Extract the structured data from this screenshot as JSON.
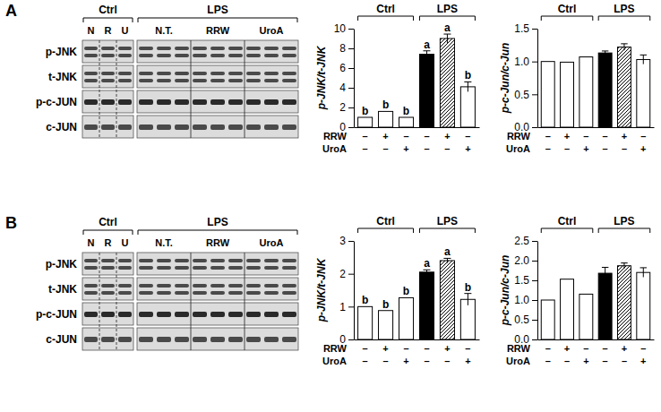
{
  "chart_data": [
    {
      "type": "bar",
      "ylabel": "p-JNK/t-JNK",
      "categories": [
        null,
        null,
        null,
        null,
        null,
        null
      ],
      "values": [
        1.0,
        1.6,
        1.0,
        7.4,
        9.0,
        4.1
      ],
      "errors": [
        null,
        null,
        null,
        0.35,
        0.45,
        0.5
      ],
      "colors": [
        "#ffffff",
        "#ffffff",
        "#ffffff",
        "#000000",
        "hatch",
        "#ffffff"
      ],
      "ylim": [
        0,
        10
      ],
      "yticks": [
        0,
        2,
        4,
        6,
        8,
        10
      ],
      "letters": [
        "b",
        "b",
        "b",
        "a",
        "a",
        "b"
      ],
      "groups": [
        {
          "label": "Ctrl",
          "from": 0,
          "to": 2
        },
        {
          "label": "LPS",
          "from": 3,
          "to": 5
        }
      ],
      "treatments": [
        {
          "name": "RRW",
          "signs": [
            "–",
            "+",
            "–",
            "–",
            "+",
            "–"
          ]
        },
        {
          "name": "UroA",
          "signs": [
            "–",
            "–",
            "+",
            "–",
            "–",
            "+"
          ]
        }
      ]
    },
    {
      "type": "bar",
      "ylabel": "p-c-Jun/c-Jun",
      "categories": [
        null,
        null,
        null,
        null,
        null,
        null
      ],
      "values": [
        1.0,
        0.99,
        1.07,
        1.13,
        1.22,
        1.03
      ],
      "errors": [
        null,
        null,
        null,
        0.03,
        0.05,
        0.07
      ],
      "colors": [
        "#ffffff",
        "#ffffff",
        "#ffffff",
        "#000000",
        "hatch",
        "#ffffff"
      ],
      "ylim": [
        0,
        1.5
      ],
      "yticks": [
        {
          "value": 0,
          "label": "0.0"
        },
        0.5,
        {
          "value": 1,
          "label": "1.0"
        },
        1.5
      ],
      "groups": [
        {
          "label": "Ctrl",
          "from": 0,
          "to": 2
        },
        {
          "label": "LPS",
          "from": 3,
          "to": 5
        }
      ],
      "treatments": [
        {
          "name": "RRW",
          "signs": [
            "–",
            "+",
            "–",
            "–",
            "+",
            "–"
          ]
        },
        {
          "name": "UroA",
          "signs": [
            "–",
            "–",
            "+",
            "–",
            "–",
            "+"
          ]
        }
      ]
    },
    {
      "type": "bar",
      "ylabel": "p-JNK/t-JNK",
      "categories": [
        null,
        null,
        null,
        null,
        null,
        null
      ],
      "values": [
        1.0,
        0.88,
        1.27,
        2.05,
        2.4,
        1.22
      ],
      "errors": [
        null,
        null,
        null,
        0.07,
        0.07,
        0.18
      ],
      "colors": [
        "#ffffff",
        "#ffffff",
        "#ffffff",
        "#000000",
        "hatch",
        "#ffffff"
      ],
      "ylim": [
        0,
        3
      ],
      "yticks": [
        0,
        1,
        2,
        3
      ],
      "letters": [
        "b",
        "b",
        "b",
        "a",
        "a",
        "b"
      ],
      "groups": [
        {
          "label": "Ctrl",
          "from": 0,
          "to": 2
        },
        {
          "label": "LPS",
          "from": 3,
          "to": 5
        }
      ],
      "treatments": [
        {
          "name": "RRW",
          "signs": [
            "–",
            "+",
            "–",
            "–",
            "+",
            "–"
          ]
        },
        {
          "name": "UroA",
          "signs": [
            "–",
            "–",
            "+",
            "–",
            "–",
            "+"
          ]
        }
      ]
    },
    {
      "type": "bar",
      "ylabel": "p-c-Jun/c-Jun",
      "categories": [
        null,
        null,
        null,
        null,
        null,
        null
      ],
      "values": [
        1.0,
        1.53,
        1.15,
        1.68,
        1.87,
        1.7
      ],
      "errors": [
        null,
        null,
        null,
        0.15,
        0.07,
        0.12
      ],
      "colors": [
        "#ffffff",
        "#ffffff",
        "#ffffff",
        "#000000",
        "hatch",
        "#ffffff"
      ],
      "ylim": [
        0,
        2.5
      ],
      "yticks": [
        {
          "value": 0,
          "label": "0.0"
        },
        0.5,
        {
          "value": 1,
          "label": "1.0"
        },
        1.5,
        {
          "value": 2,
          "label": "2.0"
        },
        2.5
      ],
      "groups": [
        {
          "label": "Ctrl",
          "from": 0,
          "to": 2
        },
        {
          "label": "LPS",
          "from": 3,
          "to": 5
        }
      ],
      "treatments": [
        {
          "name": "RRW",
          "signs": [
            "–",
            "+",
            "–",
            "–",
            "+",
            "–"
          ]
        },
        {
          "name": "UroA",
          "signs": [
            "–",
            "–",
            "+",
            "–",
            "–",
            "+"
          ]
        }
      ]
    }
  ],
  "blots": [
    {
      "panel": "A",
      "groups": [
        {
          "label": "Ctrl",
          "lanes": [
            "N",
            "R",
            "U"
          ]
        },
        {
          "label": "LPS",
          "lanes": [
            "N.T.",
            "RRW",
            "UroA"
          ]
        }
      ],
      "rows": [
        "p-JNK",
        "t-JNK",
        "p-c-JUN",
        "c-JUN"
      ]
    },
    {
      "panel": "B",
      "groups": [
        {
          "label": "Ctrl",
          "lanes": [
            "N",
            "R",
            "U"
          ]
        },
        {
          "label": "LPS",
          "lanes": [
            "N.T.",
            "RRW",
            "UroA"
          ]
        }
      ],
      "rows": [
        "p-JNK",
        "t-JNK",
        "p-c-JUN",
        "c-JUN"
      ]
    }
  ]
}
